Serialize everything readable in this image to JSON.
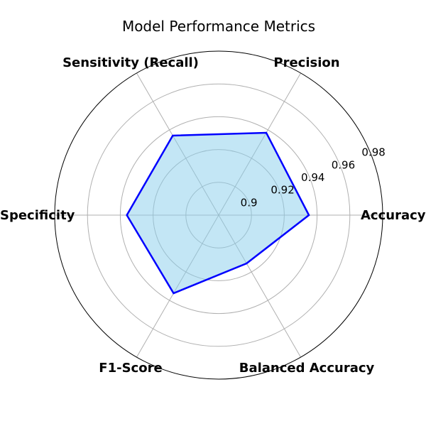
{
  "chart_data": {
    "type": "radar",
    "title": "Model Performance Metrics",
    "categories": [
      "Accuracy",
      "Precision",
      "Sensitivity (Recall)",
      "Specificity",
      "F1-Score",
      "Balanced Accuracy"
    ],
    "values": [
      0.935,
      0.938,
      0.936,
      0.936,
      0.935,
      0.914
    ],
    "rlim": [
      0.88,
      0.98
    ],
    "rticks": [
      0.9,
      0.92,
      0.94,
      0.96,
      0.98
    ],
    "rtick_labels": [
      "0.9",
      "0.92",
      "0.94",
      "0.96",
      "0.98"
    ],
    "grid": true,
    "line_color": "#0000ff",
    "fill_color": "#87ceeb"
  }
}
